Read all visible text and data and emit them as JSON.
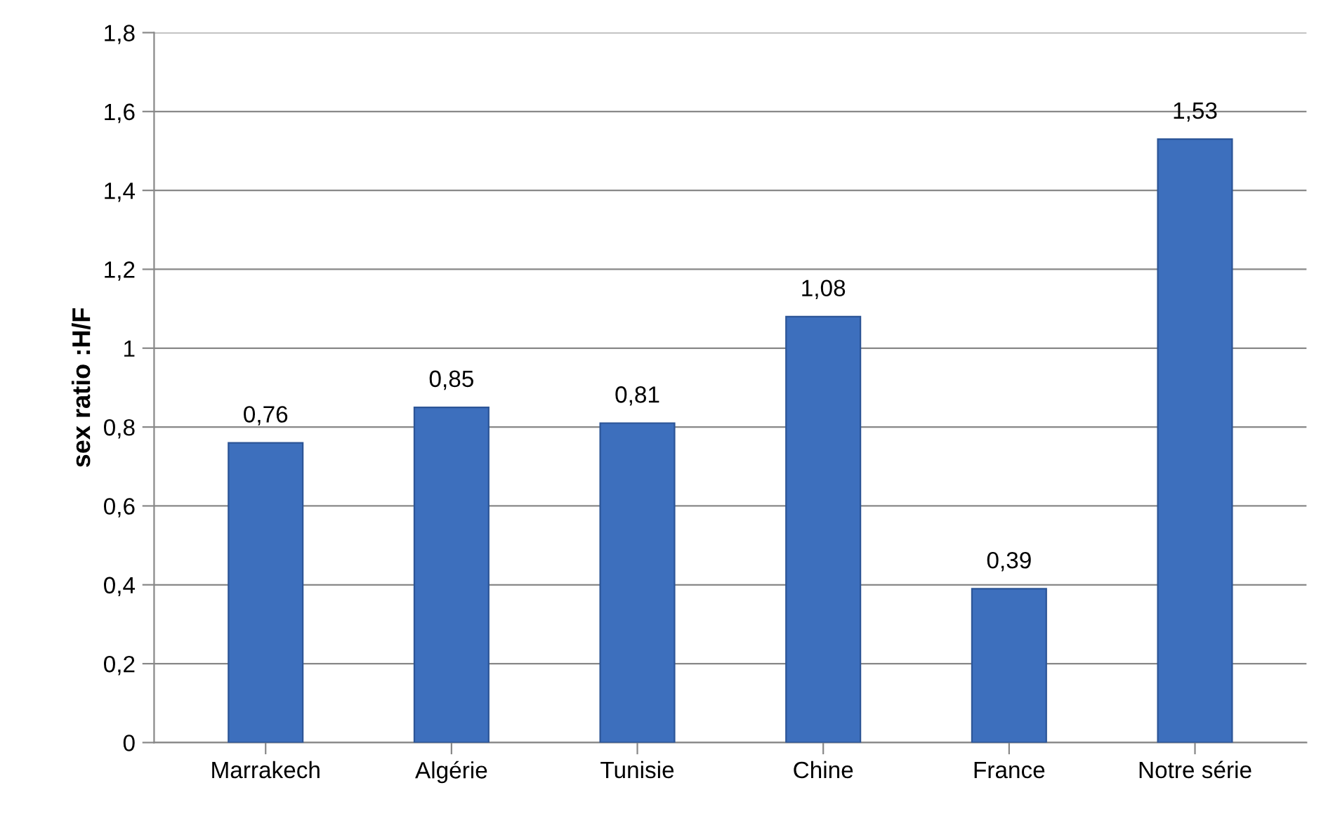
{
  "chart_data": {
    "type": "bar",
    "ylabel": "sex ratio :H/F",
    "categories": [
      "Marrakech",
      "Algérie",
      "Tunisie",
      "Chine",
      "France",
      "Notre série"
    ],
    "values": [
      0.76,
      0.85,
      0.81,
      1.08,
      0.39,
      1.53
    ],
    "value_labels": [
      "0,76",
      "0,85",
      "0,81",
      "1,08",
      "0,39",
      "1,53"
    ],
    "color": "#3d6fbd",
    "ylim": [
      0,
      1.8
    ],
    "yticks": [
      0,
      {
        "value": 0.2,
        "label": "0,2"
      },
      {
        "value": 0.4,
        "label": "0,4"
      },
      {
        "value": 0.6,
        "label": "0,6"
      },
      {
        "value": 0.8,
        "label": "0,8"
      },
      1,
      {
        "value": 1.2,
        "label": "1,2"
      },
      {
        "value": 1.4,
        "label": "1,4"
      },
      {
        "value": 1.6,
        "label": "1,6"
      },
      {
        "value": 1.8,
        "label": "1,8"
      }
    ],
    "grid": "y"
  }
}
